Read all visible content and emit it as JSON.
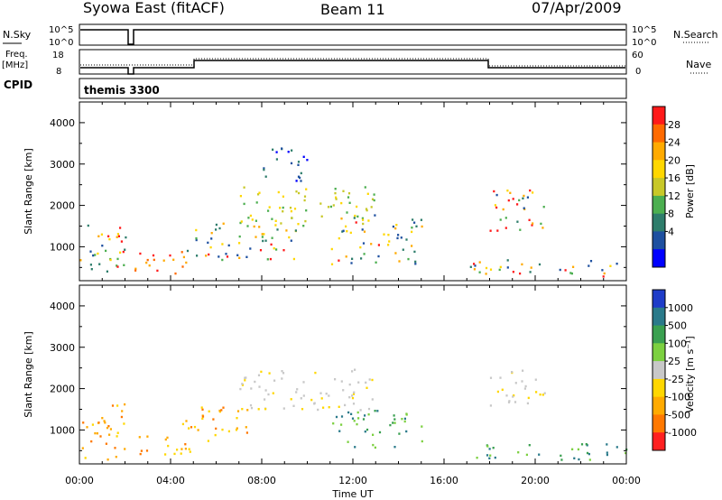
{
  "header": {
    "station": "Syowa East (fitACF)",
    "beam": "Beam 11",
    "date": "07/Apr/2009"
  },
  "nsky_panel": {
    "label_left": "N.Sky",
    "tick_hi_left": "10^5",
    "tick_lo_left": "10^0",
    "tick_hi_right": "10^5",
    "tick_lo_right": "10^0",
    "label_right": "N.Search"
  },
  "freq_panel": {
    "label_left_1": "Freq.",
    "label_left_2": "[MHz]",
    "tick_hi_left": "18",
    "tick_lo_left": "8",
    "tick_hi_right": "60",
    "tick_lo_right": "0",
    "label_right": "Nave"
  },
  "cpid_panel": {
    "label": "CPID",
    "program": "themis 3300"
  },
  "power_colorbar": {
    "label": "Power [dB]",
    "ticks": [
      "28",
      "24",
      "20",
      "16",
      "12",
      "8",
      "4"
    ],
    "colors": [
      "#ff1a1a",
      "#ff6a00",
      "#ffaa00",
      "#ffd700",
      "#c8c828",
      "#4caf50",
      "#2e7d6b",
      "#1e50a0",
      "#0000ff"
    ]
  },
  "velocity_colorbar": {
    "label": "Velocity [m s⁻¹]",
    "ticks": [
      "1000",
      "500",
      "100",
      "25",
      "-25",
      "-100",
      "-500",
      "-1000"
    ],
    "colors": [
      "#1e3cc8",
      "#2a7a8a",
      "#3aa050",
      "#7cd040",
      "#c8c8c8",
      "#ffd700",
      "#ffaa00",
      "#ff7800",
      "#ff2020"
    ]
  },
  "x_axis": {
    "label": "Time UT",
    "ticks": [
      "00:00",
      "04:00",
      "08:00",
      "12:00",
      "16:00",
      "20:00",
      "00:00"
    ]
  },
  "chart_data": [
    {
      "type": "heatmap",
      "name": "power",
      "xlabel": "Time UT",
      "ylabel": "Slant Range [km]",
      "x_range_hours": [
        0,
        24
      ],
      "ylim": [
        180,
        4500
      ],
      "yticks": [
        1000,
        2000,
        3000,
        4000
      ],
      "colorbar": "Power [dB]",
      "approx_regions": [
        {
          "t": [
            0.0,
            2.0
          ],
          "r": [
            300,
            1700
          ],
          "level": "mixed"
        },
        {
          "t": [
            2.4,
            5.0
          ],
          "r": [
            300,
            900
          ],
          "level": "high"
        },
        {
          "t": [
            4.5,
            9.5
          ],
          "r": [
            700,
            1600
          ],
          "level": "mixed"
        },
        {
          "t": [
            7.0,
            13.0
          ],
          "r": [
            1500,
            2500
          ],
          "level": "mid"
        },
        {
          "t": [
            8.0,
            10.0
          ],
          "r": [
            2600,
            3500
          ],
          "level": "low"
        },
        {
          "t": [
            11.0,
            15.0
          ],
          "r": [
            600,
            1800
          ],
          "level": "mixed"
        },
        {
          "t": [
            18.0,
            20.5
          ],
          "r": [
            1400,
            2500
          ],
          "level": "mixed"
        },
        {
          "t": [
            17.0,
            24.0
          ],
          "r": [
            300,
            700
          ],
          "level": "mixed"
        }
      ]
    },
    {
      "type": "heatmap",
      "name": "velocity",
      "xlabel": "Time UT",
      "ylabel": "Slant Range [km]",
      "x_range_hours": [
        0,
        24
      ],
      "ylim": [
        180,
        4500
      ],
      "yticks": [
        1000,
        2000,
        3000,
        4000
      ],
      "colorbar": "Velocity [m s-1]",
      "approx_regions": [
        {
          "t": [
            0.0,
            2.0
          ],
          "r": [
            300,
            1700
          ],
          "level": "negative"
        },
        {
          "t": [
            2.4,
            5.0
          ],
          "r": [
            300,
            900
          ],
          "level": "negative"
        },
        {
          "t": [
            4.5,
            7.5
          ],
          "r": [
            700,
            1600
          ],
          "level": "negative"
        },
        {
          "t": [
            7.0,
            13.0
          ],
          "r": [
            1500,
            2500
          ],
          "level": "near-zero"
        },
        {
          "t": [
            11.0,
            15.0
          ],
          "r": [
            600,
            1500
          ],
          "level": "positive"
        },
        {
          "t": [
            18.0,
            20.5
          ],
          "r": [
            1600,
            2500
          ],
          "level": "near-zero"
        },
        {
          "t": [
            17.0,
            24.0
          ],
          "r": [
            300,
            700
          ],
          "level": "positive"
        }
      ]
    }
  ]
}
